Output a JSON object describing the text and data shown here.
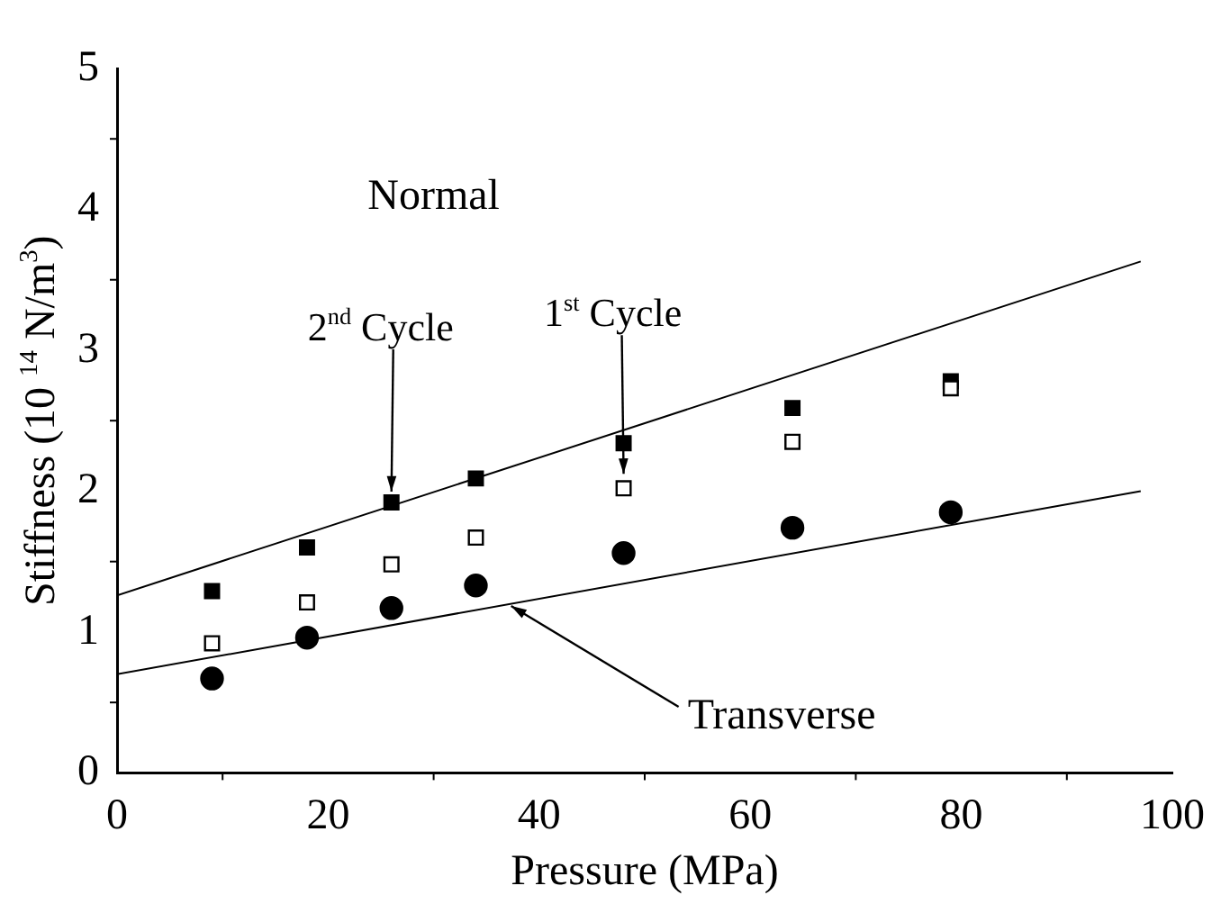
{
  "chart_data": {
    "type": "scatter",
    "xlabel": "Pressure (MPa)",
    "ylabel": "Stiffness (10 $^{14}$ N/m$^{3}$)",
    "xlim": [
      0,
      100
    ],
    "xticks": [
      0,
      20,
      40,
      60,
      80,
      100
    ],
    "ylim": [
      0,
      5
    ],
    "yticks": [
      0,
      1,
      2,
      3,
      4,
      5
    ],
    "grid": false,
    "legend": false,
    "series": [
      {
        "color": "#000000",
        "marker": "square",
        "x": [
          9,
          18,
          26,
          34,
          48,
          64,
          79
        ],
        "values": [
          1.29,
          1.6,
          1.92,
          2.09,
          2.34,
          2.59,
          2.78
        ]
      },
      {
        "color": "#ffffff",
        "marker": "square",
        "x": [
          9,
          18,
          26,
          34,
          48,
          64,
          79
        ],
        "values": [
          0.92,
          1.21,
          1.48,
          1.67,
          2.02,
          2.35,
          2.73
        ]
      },
      {
        "color": "#000000",
        "marker": "circle",
        "x": [
          9,
          18,
          26,
          34,
          48,
          64,
          79
        ],
        "values": [
          0.67,
          0.96,
          1.17,
          1.33,
          1.56,
          1.74,
          1.85
        ]
      },
      {
        "type": "line",
        "color": "#000000",
        "marker": "none",
        "x": [
          0,
          97
        ],
        "values": [
          1.26,
          3.63
        ]
      },
      {
        "type": "line",
        "color": "#000000",
        "marker": "none",
        "x": [
          0,
          97
        ],
        "values": [
          0.7,
          2.0
        ]
      }
    ],
    "annotations": [
      "Normal",
      {
        "text": "2$^{nd}$ Cycle",
        "x": 26,
        "y": 1.92
      },
      {
        "text": "1$^{st}$ Cycle",
        "x": 48,
        "y": 2.02
      },
      {
        "text": "Transverse",
        "x": 37,
        "y": 1.21
      }
    ]
  }
}
